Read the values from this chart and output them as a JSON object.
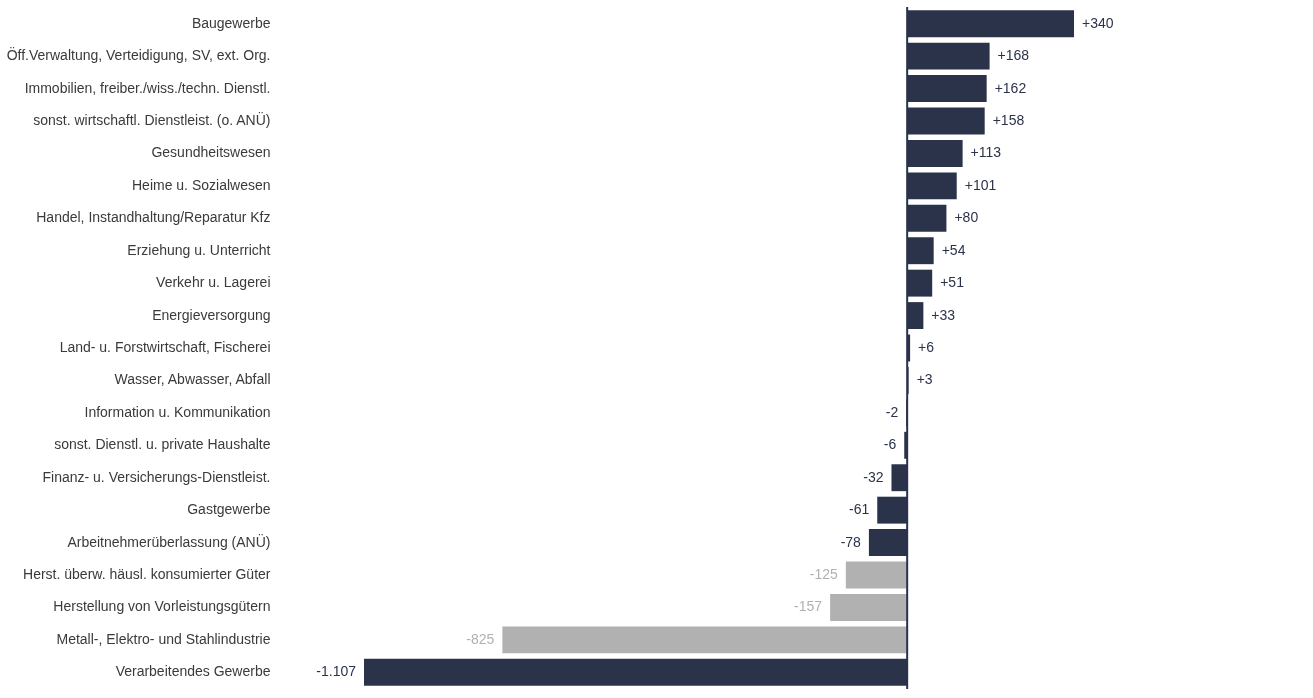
{
  "chart_data": {
    "type": "bar",
    "orientation": "horizontal",
    "categories": [
      "Baugewerbe",
      "Öff.Verwaltung, Verteidigung, SV, ext. Org.",
      "Immobilien, freiber./wiss./techn. Dienstl.",
      "sonst. wirtschaftl. Dienstleist. (o. ANÜ)",
      "Gesundheitswesen",
      "Heime u. Sozialwesen",
      "Handel, Instandhaltung/Reparatur Kfz",
      "Erziehung u. Unterricht",
      "Verkehr u. Lagerei",
      "Energieversorgung",
      "Land- u. Forstwirtschaft, Fischerei",
      "Wasser, Abwasser, Abfall",
      "Information u. Kommunikation",
      "sonst. Dienstl. u. private Haushalte",
      "Finanz- u. Versicherungs-Dienstleist.",
      "Gastgewerbe",
      "Arbeitnehmerüberlassung (ANÜ)",
      "Herst. überw. häusl. konsumierter Güter",
      "Herstellung von Vorleistungsgütern",
      "Metall-, Elektro- und Stahlindustrie",
      "Verarbeitendes Gewerbe"
    ],
    "values": [
      340,
      168,
      162,
      158,
      113,
      101,
      80,
      54,
      51,
      33,
      6,
      3,
      -2,
      -6,
      -32,
      -61,
      -78,
      -125,
      -157,
      -825,
      -1107
    ],
    "value_labels": [
      "+340",
      "+168",
      "+162",
      "+158",
      "+113",
      "+101",
      "+80",
      "+54",
      "+51",
      "+33",
      "+6",
      "+3",
      "-2",
      "-6",
      "-32",
      "-61",
      "-78",
      "-125",
      "-157",
      "-825",
      "-1.107"
    ],
    "colors": [
      "#2b334b",
      "#2b334b",
      "#2b334b",
      "#2b334b",
      "#2b334b",
      "#2b334b",
      "#2b334b",
      "#2b334b",
      "#2b334b",
      "#2b334b",
      "#2b334b",
      "#2b334b",
      "#2b334b",
      "#2b334b",
      "#2b334b",
      "#2b334b",
      "#2b334b",
      "#b1b1b1",
      "#b1b1b1",
      "#b1b1b1",
      "#2b334b"
    ],
    "ref_lines": [
      {
        "axis": "x",
        "value": 0,
        "color": "#2b334b"
      }
    ],
    "legend": false
  }
}
